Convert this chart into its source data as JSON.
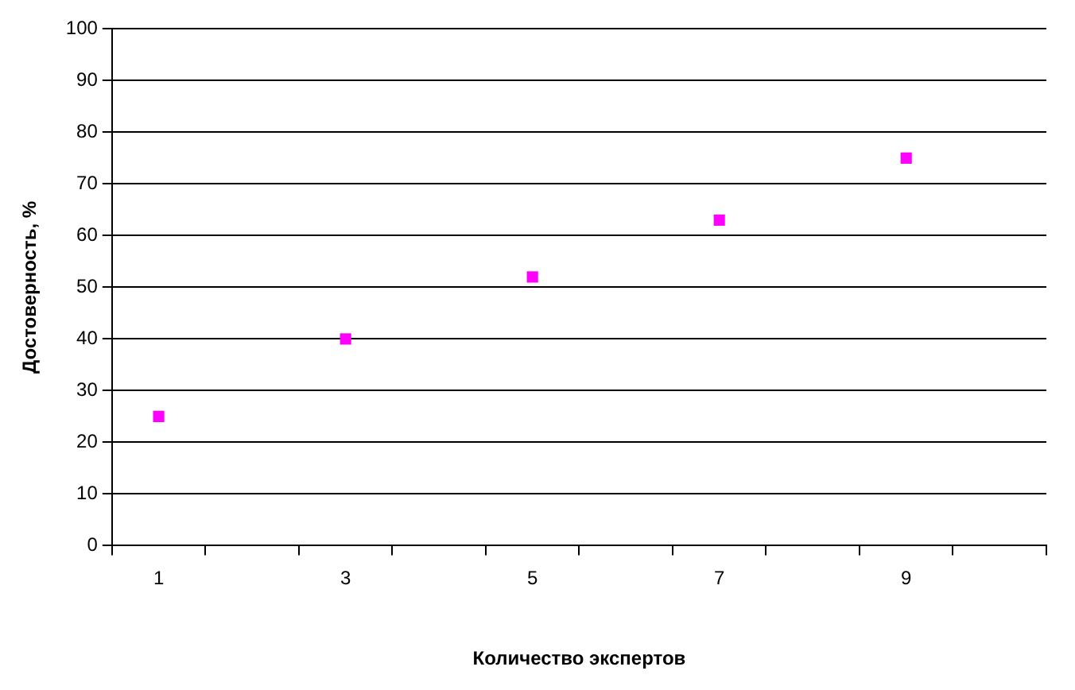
{
  "chart_data": {
    "type": "scatter",
    "xlabel": "Количество экспертов",
    "ylabel": "Достоверность, %",
    "categories": [
      "1",
      null,
      "3",
      null,
      "5",
      null,
      "7",
      null,
      "9",
      null
    ],
    "series": [
      {
        "color": "#ff00ff",
        "values": [
          25,
          null,
          40,
          null,
          52,
          null,
          63,
          null,
          75,
          null
        ]
      }
    ],
    "ylim": [
      0,
      100
    ],
    "yticks": [
      0,
      10,
      20,
      30,
      40,
      50,
      60,
      70,
      80,
      90,
      100
    ],
    "grid": "y",
    "marker": "square",
    "legend": false
  }
}
